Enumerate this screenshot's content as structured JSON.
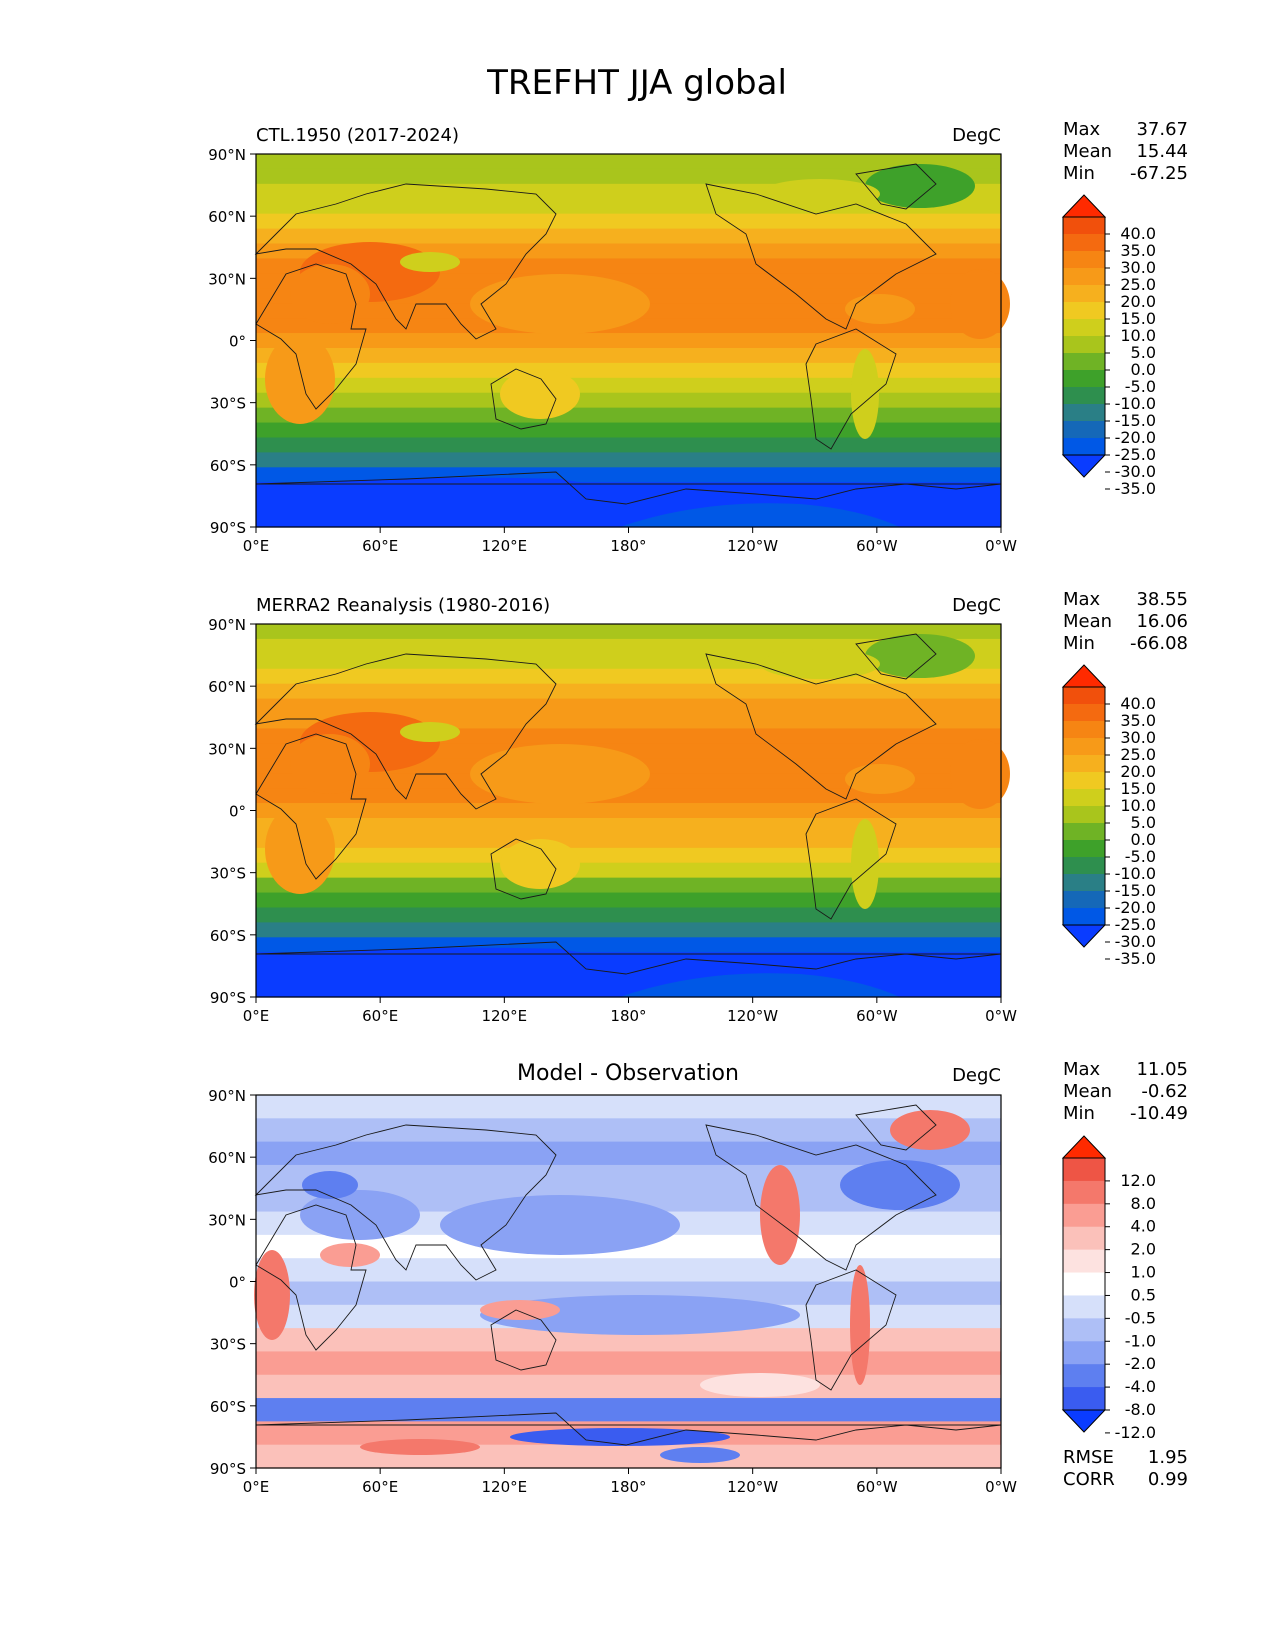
{
  "figure": {
    "title": "TREFHT JJA global"
  },
  "colors": {
    "abs_levels": [
      "#0a3cff",
      "#0058e6",
      "#1568b8",
      "#2a7f86",
      "#2e8f4e",
      "#3ea12a",
      "#6fb325",
      "#a9c51c",
      "#cfcf1c",
      "#f0c921",
      "#f6b01e",
      "#f79a18",
      "#f68513",
      "#f46a10",
      "#f1500c",
      "#ff2a00"
    ],
    "diff_levels": [
      "#0a3cff",
      "#3a5cf0",
      "#5e7ff0",
      "#8aa2f4",
      "#aebff6",
      "#d6e0fa",
      "#ffffff",
      "#fde2e0",
      "#fbc1ba",
      "#fa9d93",
      "#f4786b",
      "#ee5545",
      "#ff2a00"
    ],
    "land": "#1a1a1a"
  },
  "panels": [
    {
      "id": "test",
      "title": "CTL.1950 (2017-2024)",
      "units": "DegC",
      "stats": {
        "Max": "37.67",
        "Mean": "15.44",
        "Min": "-67.25"
      },
      "colorbar_labels": [
        "40.0",
        "35.0",
        "30.0",
        "25.0",
        "20.0",
        "15.0",
        "10.0",
        "5.0",
        "0.0",
        "-5.0",
        "-10.0",
        "-15.0",
        "-20.0",
        "-25.0",
        "-30.0",
        "-35.0"
      ]
    },
    {
      "id": "reference",
      "title": "MERRA2 Reanalysis (1980-2016)",
      "units": "DegC",
      "stats": {
        "Max": "38.55",
        "Mean": "16.06",
        "Min": "-66.08"
      },
      "colorbar_labels": [
        "40.0",
        "35.0",
        "30.0",
        "25.0",
        "20.0",
        "15.0",
        "10.0",
        "5.0",
        "0.0",
        "-5.0",
        "-10.0",
        "-15.0",
        "-20.0",
        "-25.0",
        "-30.0",
        "-35.0"
      ]
    },
    {
      "id": "diff",
      "title": "Model - Observation",
      "units": "DegC",
      "stats": {
        "Max": "11.05",
        "Mean": "-0.62",
        "Min": "-10.49"
      },
      "colorbar_labels": [
        "12.0",
        "8.0",
        "4.0",
        "2.0",
        "1.0",
        "0.5",
        "-0.5",
        "-1.0",
        "-2.0",
        "-4.0",
        "-8.0",
        "-12.0"
      ],
      "metrics": {
        "RMSE": "1.95",
        "CORR": "0.99"
      }
    }
  ],
  "axes": {
    "lat_ticks": [
      "90°N",
      "60°N",
      "30°N",
      "0°",
      "30°S",
      "60°S",
      "90°S"
    ],
    "lon_ticks": [
      "0°E",
      "60°E",
      "120°E",
      "180°",
      "120°W",
      "60°W",
      "0°W"
    ]
  }
}
